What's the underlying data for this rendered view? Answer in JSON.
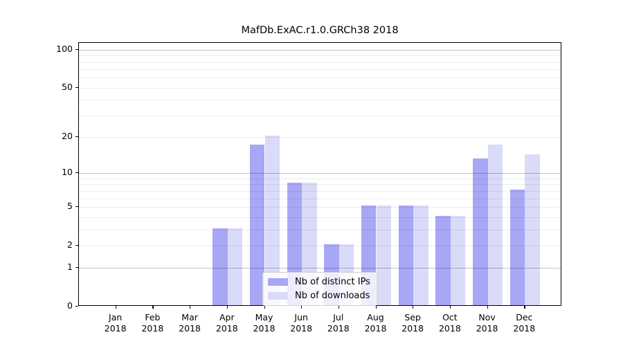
{
  "chart_data": {
    "type": "bar",
    "title": "MafDb.ExAC.r1.0.GRCh38 2018",
    "categories": [
      "Jan",
      "Feb",
      "Mar",
      "Apr",
      "May",
      "Jun",
      "Jul",
      "Aug",
      "Sep",
      "Oct",
      "Nov",
      "Dec"
    ],
    "category_year": "2018",
    "series": [
      {
        "name": "Nb of distinct IPs",
        "color": "#a7a7f6",
        "values": [
          0,
          0,
          0,
          3,
          17,
          8,
          2,
          5,
          5,
          4,
          13,
          7
        ]
      },
      {
        "name": "Nb of downloads",
        "color": "#dadaf9",
        "values": [
          0,
          0,
          0,
          3,
          20,
          8,
          2,
          5,
          5,
          4,
          17,
          14
        ]
      }
    ],
    "yscale": "log1p",
    "ylim": [
      0,
      113
    ],
    "yticks": [
      0,
      1,
      2,
      5,
      10,
      20,
      50,
      100
    ],
    "grid_minor": [
      2,
      3,
      4,
      5,
      6,
      7,
      8,
      9,
      20,
      30,
      40,
      50,
      60,
      70,
      80,
      90
    ],
    "grid_major": [
      1,
      10,
      100
    ],
    "legend_position": "lower-center",
    "grid": true,
    "colors": {
      "spine": "#000000",
      "minor_grid": "rgba(0,0,0,0.075)",
      "major_grid": "rgba(0,0,0,0.24)"
    }
  }
}
